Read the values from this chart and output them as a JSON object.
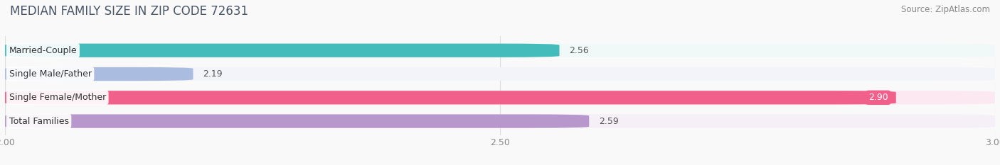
{
  "title": "MEDIAN FAMILY SIZE IN ZIP CODE 72631",
  "source": "Source: ZipAtlas.com",
  "categories": [
    "Married-Couple",
    "Single Male/Father",
    "Single Female/Mother",
    "Total Families"
  ],
  "values": [
    2.56,
    2.19,
    2.9,
    2.59
  ],
  "bar_colors": [
    "#45bcbc",
    "#aabce0",
    "#f0608a",
    "#b898cc"
  ],
  "bar_bg_colors": [
    "#f0f8f8",
    "#f2f4fa",
    "#fce8f0",
    "#f5f0f8"
  ],
  "xlim": [
    2.0,
    3.0
  ],
  "xticks": [
    2.0,
    2.5,
    3.0
  ],
  "background_color": "#f9f9f9",
  "bar_height": 0.58,
  "label_fontsize": 9,
  "value_fontsize": 9,
  "title_fontsize": 12,
  "source_fontsize": 8.5,
  "title_color": "#4a5568",
  "source_color": "#888888",
  "grid_color": "#dddddd",
  "tick_color": "#888888"
}
